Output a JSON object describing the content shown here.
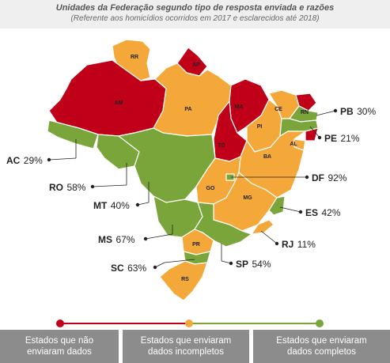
{
  "header": {
    "title": "Unidades da Federação segundo tipo de resposta enviada e razões",
    "subtitle": "(Referente aos homicídios ocorridos em 2017 e esclarecidos até 2018)"
  },
  "colors": {
    "red": "#c00018",
    "orange": "#f5a83a",
    "green": "#7aa53a",
    "legend_bg": "#8c8c8c"
  },
  "states_map_labels": [
    "RR",
    "AP",
    "AM",
    "PA",
    "MA",
    "CE",
    "RN",
    "PI",
    "TO",
    "AL",
    "BA",
    "GO",
    "MG",
    "PR",
    "RS"
  ],
  "callouts": [
    {
      "code": "PB",
      "pct": "30%"
    },
    {
      "code": "PE",
      "pct": "21%"
    },
    {
      "code": "AC",
      "pct": "29%"
    },
    {
      "code": "RO",
      "pct": "58%"
    },
    {
      "code": "DF",
      "pct": "92%"
    },
    {
      "code": "MT",
      "pct": "40%"
    },
    {
      "code": "ES",
      "pct": "42%"
    },
    {
      "code": "MS",
      "pct": "67%"
    },
    {
      "code": "RJ",
      "pct": "11%"
    },
    {
      "code": "SP",
      "pct": "54%"
    },
    {
      "code": "SC",
      "pct": "63%"
    }
  ],
  "legend": [
    {
      "line1": "Estados que não",
      "line2": "enviaram dados"
    },
    {
      "line1": "Estados que enviaram",
      "line2": "dados incompletos"
    },
    {
      "line1": "Estados que enviaram",
      "line2": "dados completos"
    }
  ]
}
